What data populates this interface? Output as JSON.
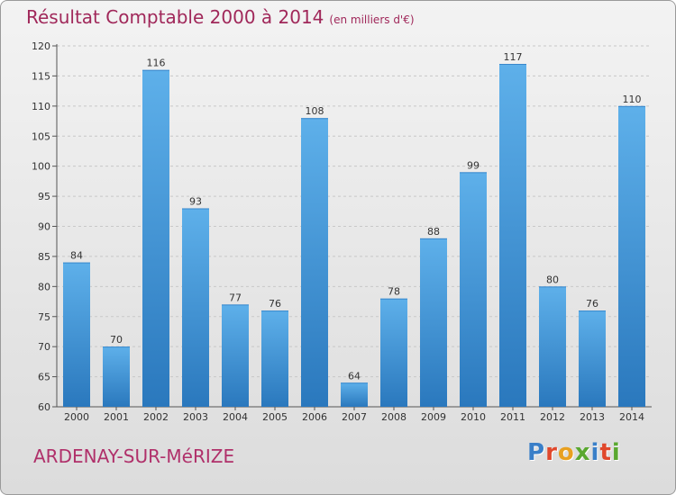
{
  "title": "Résultat Comptable 2000 à 2014",
  "subtitle": "(en milliers d'€)",
  "town": "ARDENAY-SUR-MéRIZE",
  "logo": {
    "text": "Proxiti",
    "letter_colors": [
      "#3a7fc8",
      "#e0482c",
      "#e8a020",
      "#5aa830",
      "#3a7fc8",
      "#e0482c",
      "#5aa830"
    ]
  },
  "colors": {
    "bar_top": "#5eb0ea",
    "bar_bottom": "#2a78bd",
    "title": "#a0285a",
    "town": "#b0306a"
  },
  "chart_data": {
    "type": "bar",
    "categories": [
      "2000",
      "2001",
      "2002",
      "2003",
      "2004",
      "2005",
      "2006",
      "2007",
      "2008",
      "2009",
      "2010",
      "2011",
      "2012",
      "2013",
      "2014"
    ],
    "values": [
      84,
      70,
      116,
      93,
      77,
      76,
      108,
      64,
      78,
      88,
      99,
      117,
      80,
      76,
      110
    ],
    "ylim": [
      60,
      120
    ],
    "yticks": [
      60,
      65,
      70,
      75,
      80,
      85,
      90,
      95,
      100,
      105,
      110,
      115,
      120
    ],
    "grid": true,
    "data_labels": true
  }
}
